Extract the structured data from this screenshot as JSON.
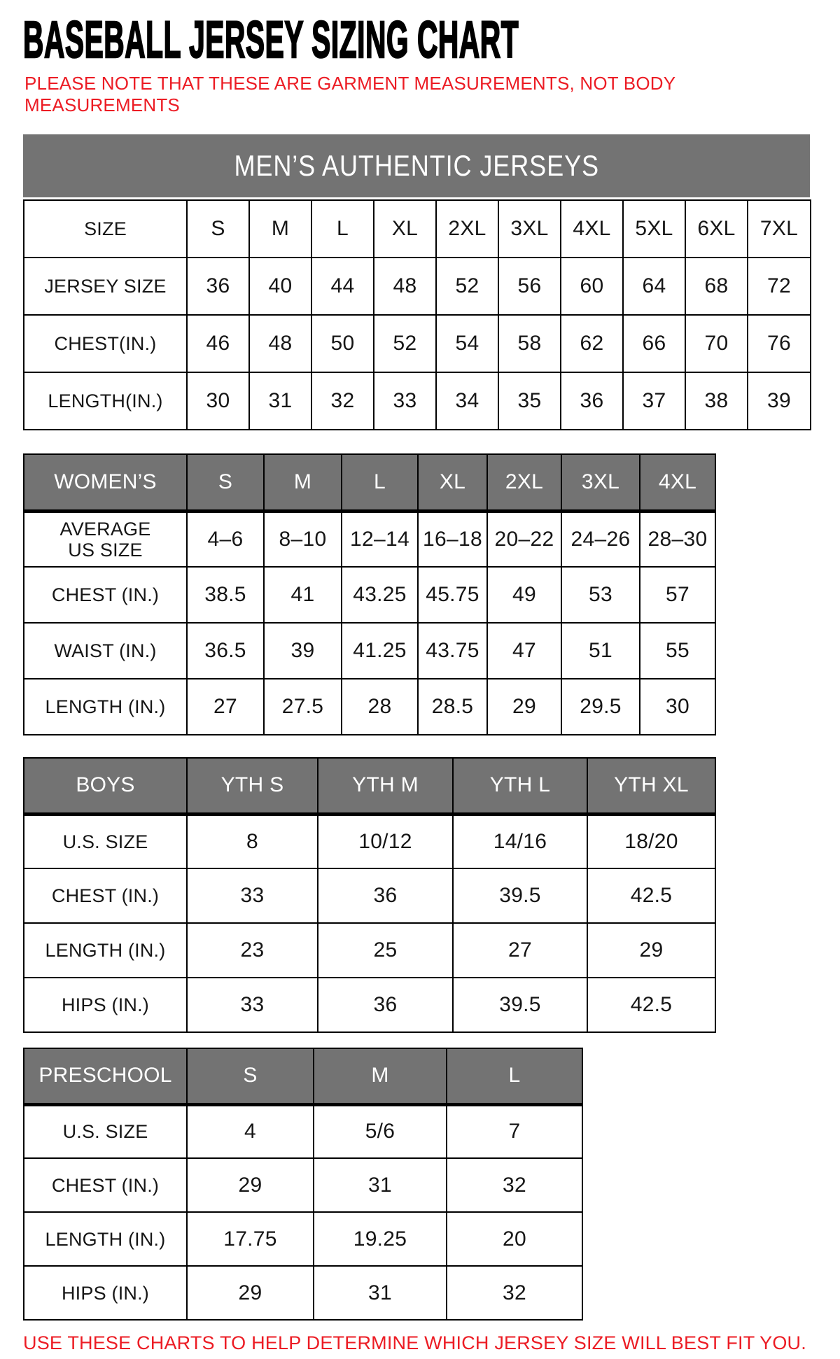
{
  "title": "BASEBALL JERSEY SIZING CHART",
  "note": {
    "line1": "PLEASE NOTE THAT THESE ARE GARMENT MEASUREMENTS, NOT BODY",
    "line2": "MEASUREMENTS"
  },
  "footer": "USE THESE CHARTS TO HELP DETERMINE WHICH JERSEY SIZE WILL BEST FIT YOU.",
  "colors": {
    "accent_red": "#ec1c24",
    "header_gray": "#737373",
    "border_black": "#000000",
    "background": "#ffffff"
  },
  "tables": {
    "mens": {
      "banner": "MEN’S AUTHENTIC JERSEYS",
      "header_row": [
        "SIZE",
        "S",
        "M",
        "L",
        "XL",
        "2XL",
        "3XL",
        "4XL",
        "5XL",
        "6XL",
        "7XL"
      ],
      "rows": [
        [
          "JERSEY SIZE",
          "36",
          "40",
          "44",
          "48",
          "52",
          "56",
          "60",
          "64",
          "68",
          "72"
        ],
        [
          "CHEST(IN.)",
          "46",
          "48",
          "50",
          "52",
          "54",
          "58",
          "62",
          "66",
          "70",
          "76"
        ],
        [
          "LENGTH(IN.)",
          "30",
          "31",
          "32",
          "33",
          "34",
          "35",
          "36",
          "37",
          "38",
          "39"
        ]
      ]
    },
    "womens": {
      "header_row": [
        "WOMEN’S",
        "S",
        "M",
        "L",
        "XL",
        "2XL",
        "3XL",
        "4XL"
      ],
      "rows": [
        [
          "AVERAGE\nUS SIZE",
          "4–6",
          "8–10",
          "12–14",
          "16–18",
          "20–22",
          "24–26",
          "28–30"
        ],
        [
          "CHEST (IN.)",
          "38.5",
          "41",
          "43.25",
          "45.75",
          "49",
          "53",
          "57"
        ],
        [
          "WAIST (IN.)",
          "36.5",
          "39",
          "41.25",
          "43.75",
          "47",
          "51",
          "55"
        ],
        [
          "LENGTH (IN.)",
          "27",
          "27.5",
          "28",
          "28.5",
          "29",
          "29.5",
          "30"
        ]
      ]
    },
    "boys": {
      "header_row": [
        "BOYS",
        "YTH S",
        "YTH M",
        "YTH L",
        "YTH XL"
      ],
      "rows": [
        [
          "U.S. SIZE",
          "8",
          "10/12",
          "14/16",
          "18/20"
        ],
        [
          "CHEST (IN.)",
          "33",
          "36",
          "39.5",
          "42.5"
        ],
        [
          "LENGTH (IN.)",
          "23",
          "25",
          "27",
          "29"
        ],
        [
          "HIPS (IN.)",
          "33",
          "36",
          "39.5",
          "42.5"
        ]
      ]
    },
    "preschool": {
      "header_row": [
        "PRESCHOOL",
        "S",
        "M",
        "L"
      ],
      "rows": [
        [
          "U.S. SIZE",
          "4",
          "5/6",
          "7"
        ],
        [
          "CHEST (IN.)",
          "29",
          "31",
          "32"
        ],
        [
          "LENGTH (IN.)",
          "17.75",
          "19.25",
          "20"
        ],
        [
          "HIPS (IN.)",
          "29",
          "31",
          "32"
        ]
      ]
    }
  }
}
